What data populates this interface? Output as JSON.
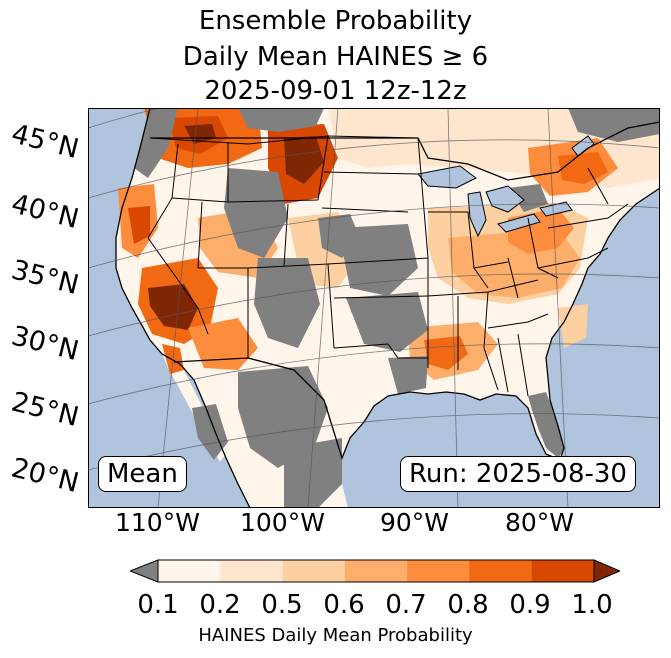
{
  "title": {
    "line1": "Ensemble Probability",
    "line2": "Daily Mean HAINES ≥ 6",
    "line3": "2025-09-01 12z-12z"
  },
  "map": {
    "region": "Contiguous United States",
    "boxes": {
      "statistic": "Mean",
      "run": "Run: 2025-08-30"
    },
    "latitude_labels": [
      "45°N",
      "40°N",
      "35°N",
      "30°N",
      "25°N",
      "20°N"
    ],
    "longitude_labels": [
      "110°W",
      "100°W",
      "90°W",
      "80°W"
    ],
    "colors": {
      "ocean": "#b0c4de",
      "no_data_land": "#808080",
      "borders": "#000000",
      "graticule": "#555555"
    }
  },
  "colorbar": {
    "label": "HAINES Daily Mean Probability",
    "ticks": [
      "0.1",
      "0.2",
      "0.5",
      "0.6",
      "0.7",
      "0.8",
      "0.9",
      "1.0"
    ],
    "under_color": "#808080",
    "over_color": "#7f2704",
    "bin_colors": [
      "#fff5eb",
      "#fee6ce",
      "#fdd0a2",
      "#fdae6b",
      "#fd8d3c",
      "#f16913",
      "#d94801"
    ]
  }
}
